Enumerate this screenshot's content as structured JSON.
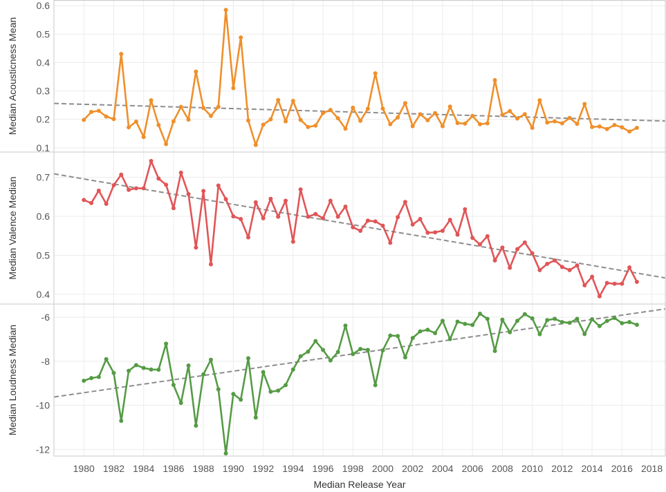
{
  "chart_data": {
    "type": "line",
    "xlabel": "Median Release Year",
    "x_ticks": [
      1980,
      1982,
      1984,
      1986,
      1988,
      1990,
      1992,
      1994,
      1996,
      1998,
      2000,
      2002,
      2004,
      2006,
      2008,
      2010,
      2012,
      2014,
      2016,
      2018
    ],
    "xlim": [
      1978,
      2018.9
    ],
    "panels": [
      {
        "ylabel": "Median Acousticness Mean",
        "color": "#ef8f2b",
        "ylim": [
          0.085,
          0.62
        ],
        "y_ticks": [
          0.1,
          0.2,
          0.3,
          0.4,
          0.5,
          0.6
        ],
        "y_tick_labels": [
          "0.1",
          "0.2",
          "0.3",
          "0.4",
          "0.5",
          "0.6"
        ],
        "trend": [
          [
            1978,
            0.256
          ],
          [
            2018.9,
            0.194
          ]
        ],
        "points": [
          [
            1980.0,
            0.198
          ],
          [
            1980.5,
            0.226
          ],
          [
            1981.0,
            0.23
          ],
          [
            1981.5,
            0.21
          ],
          [
            1982.0,
            0.201
          ],
          [
            1982.5,
            0.43
          ],
          [
            1983.0,
            0.172
          ],
          [
            1983.5,
            0.192
          ],
          [
            1984.0,
            0.138
          ],
          [
            1984.5,
            0.267
          ],
          [
            1985.0,
            0.18
          ],
          [
            1985.5,
            0.113
          ],
          [
            1986.0,
            0.193
          ],
          [
            1986.5,
            0.244
          ],
          [
            1987.0,
            0.199
          ],
          [
            1987.5,
            0.368
          ],
          [
            1988.0,
            0.24
          ],
          [
            1988.5,
            0.212
          ],
          [
            1989.0,
            0.244
          ],
          [
            1989.5,
            0.585
          ],
          [
            1990.0,
            0.31
          ],
          [
            1990.5,
            0.488
          ],
          [
            1991.0,
            0.196
          ],
          [
            1991.5,
            0.11
          ],
          [
            1992.0,
            0.181
          ],
          [
            1992.5,
            0.2
          ],
          [
            1993.0,
            0.268
          ],
          [
            1993.5,
            0.193
          ],
          [
            1994.0,
            0.265
          ],
          [
            1994.5,
            0.198
          ],
          [
            1995.0,
            0.173
          ],
          [
            1995.5,
            0.178
          ],
          [
            1996.0,
            0.222
          ],
          [
            1996.5,
            0.233
          ],
          [
            1997.0,
            0.204
          ],
          [
            1997.5,
            0.167
          ],
          [
            1998.0,
            0.241
          ],
          [
            1998.5,
            0.195
          ],
          [
            1999.0,
            0.237
          ],
          [
            1999.5,
            0.362
          ],
          [
            2000.0,
            0.238
          ],
          [
            2000.5,
            0.183
          ],
          [
            2001.0,
            0.207
          ],
          [
            2001.5,
            0.257
          ],
          [
            2002.0,
            0.176
          ],
          [
            2002.5,
            0.218
          ],
          [
            2003.0,
            0.197
          ],
          [
            2003.5,
            0.222
          ],
          [
            2004.0,
            0.176
          ],
          [
            2004.5,
            0.245
          ],
          [
            2005.0,
            0.187
          ],
          [
            2005.5,
            0.185
          ],
          [
            2006.0,
            0.212
          ],
          [
            2006.5,
            0.183
          ],
          [
            2007.0,
            0.186
          ],
          [
            2007.5,
            0.338
          ],
          [
            2008.0,
            0.216
          ],
          [
            2008.5,
            0.229
          ],
          [
            2009.0,
            0.203
          ],
          [
            2009.5,
            0.218
          ],
          [
            2010.0,
            0.17
          ],
          [
            2010.5,
            0.267
          ],
          [
            2011.0,
            0.189
          ],
          [
            2011.5,
            0.193
          ],
          [
            2012.0,
            0.186
          ],
          [
            2012.5,
            0.205
          ],
          [
            2013.0,
            0.184
          ],
          [
            2013.5,
            0.254
          ],
          [
            2014.0,
            0.173
          ],
          [
            2014.5,
            0.175
          ],
          [
            2015.0,
            0.166
          ],
          [
            2015.5,
            0.18
          ],
          [
            2016.0,
            0.172
          ],
          [
            2016.5,
            0.157
          ],
          [
            2017.0,
            0.17
          ]
        ]
      },
      {
        "ylabel": "Median Valence Median",
        "color": "#e05557",
        "ylim": [
          0.375,
          0.765
        ],
        "y_ticks": [
          0.4,
          0.5,
          0.6,
          0.7
        ],
        "y_tick_labels": [
          "0.4",
          "0.5",
          "0.6",
          "0.7"
        ],
        "trend": [
          [
            1978,
            0.709
          ],
          [
            2018.9,
            0.442
          ]
        ],
        "points": [
          [
            1980.0,
            0.642
          ],
          [
            1980.5,
            0.634
          ],
          [
            1981.0,
            0.666
          ],
          [
            1981.5,
            0.632
          ],
          [
            1982.0,
            0.68
          ],
          [
            1982.5,
            0.707
          ],
          [
            1983.0,
            0.668
          ],
          [
            1983.5,
            0.672
          ],
          [
            1984.0,
            0.672
          ],
          [
            1984.5,
            0.742
          ],
          [
            1985.0,
            0.697
          ],
          [
            1985.5,
            0.681
          ],
          [
            1986.0,
            0.621
          ],
          [
            1986.5,
            0.712
          ],
          [
            1987.0,
            0.657
          ],
          [
            1987.5,
            0.52
          ],
          [
            1988.0,
            0.665
          ],
          [
            1988.5,
            0.477
          ],
          [
            1989.0,
            0.679
          ],
          [
            1989.5,
            0.644
          ],
          [
            1990.0,
            0.6
          ],
          [
            1990.5,
            0.593
          ],
          [
            1991.0,
            0.546
          ],
          [
            1991.5,
            0.636
          ],
          [
            1992.0,
            0.595
          ],
          [
            1992.5,
            0.645
          ],
          [
            1993.0,
            0.599
          ],
          [
            1993.5,
            0.64
          ],
          [
            1994.0,
            0.535
          ],
          [
            1994.5,
            0.669
          ],
          [
            1995.0,
            0.599
          ],
          [
            1995.5,
            0.606
          ],
          [
            1996.0,
            0.595
          ],
          [
            1996.5,
            0.64
          ],
          [
            1997.0,
            0.599
          ],
          [
            1997.5,
            0.625
          ],
          [
            1998.0,
            0.572
          ],
          [
            1998.5,
            0.563
          ],
          [
            1999.0,
            0.589
          ],
          [
            1999.5,
            0.587
          ],
          [
            2000.0,
            0.576
          ],
          [
            2000.5,
            0.532
          ],
          [
            2001.0,
            0.598
          ],
          [
            2001.5,
            0.637
          ],
          [
            2002.0,
            0.579
          ],
          [
            2002.5,
            0.593
          ],
          [
            2003.0,
            0.558
          ],
          [
            2003.5,
            0.559
          ],
          [
            2004.0,
            0.563
          ],
          [
            2004.5,
            0.591
          ],
          [
            2005.0,
            0.553
          ],
          [
            2005.5,
            0.618
          ],
          [
            2006.0,
            0.545
          ],
          [
            2006.5,
            0.528
          ],
          [
            2007.0,
            0.549
          ],
          [
            2007.5,
            0.487
          ],
          [
            2008.0,
            0.52
          ],
          [
            2008.5,
            0.468
          ],
          [
            2009.0,
            0.516
          ],
          [
            2009.5,
            0.533
          ],
          [
            2010.0,
            0.505
          ],
          [
            2010.5,
            0.462
          ],
          [
            2011.0,
            0.478
          ],
          [
            2011.5,
            0.487
          ],
          [
            2012.0,
            0.47
          ],
          [
            2012.5,
            0.462
          ],
          [
            2013.0,
            0.474
          ],
          [
            2013.5,
            0.423
          ],
          [
            2014.0,
            0.445
          ],
          [
            2014.5,
            0.395
          ],
          [
            2015.0,
            0.429
          ],
          [
            2015.5,
            0.427
          ],
          [
            2016.0,
            0.427
          ],
          [
            2016.5,
            0.469
          ],
          [
            2017.0,
            0.432
          ]
        ]
      },
      {
        "ylabel": "Median Loudness Median",
        "color": "#559b45",
        "ylim": [
          -12.3,
          -5.4
        ],
        "y_ticks": [
          -12,
          -10,
          -8,
          -6
        ],
        "y_tick_labels": [
          "-12",
          "-10",
          "-8",
          "-6"
        ],
        "trend": [
          [
            1978,
            -9.62
          ],
          [
            2018.9,
            -5.62
          ]
        ],
        "points": [
          [
            1980.0,
            -8.88
          ],
          [
            1980.5,
            -8.76
          ],
          [
            1981.0,
            -8.71
          ],
          [
            1981.5,
            -7.9
          ],
          [
            1982.0,
            -8.53
          ],
          [
            1982.5,
            -10.7
          ],
          [
            1983.0,
            -8.43
          ],
          [
            1983.5,
            -8.17
          ],
          [
            1984.0,
            -8.3
          ],
          [
            1984.5,
            -8.37
          ],
          [
            1985.0,
            -8.38
          ],
          [
            1985.5,
            -7.2
          ],
          [
            1986.0,
            -9.07
          ],
          [
            1986.5,
            -9.89
          ],
          [
            1987.0,
            -8.19
          ],
          [
            1987.5,
            -10.92
          ],
          [
            1988.0,
            -8.59
          ],
          [
            1988.5,
            -7.93
          ],
          [
            1989.0,
            -9.27
          ],
          [
            1989.5,
            -12.18
          ],
          [
            1990.0,
            -9.48
          ],
          [
            1990.5,
            -9.74
          ],
          [
            1991.0,
            -7.86
          ],
          [
            1991.5,
            -10.55
          ],
          [
            1992.0,
            -8.49
          ],
          [
            1992.5,
            -9.38
          ],
          [
            1993.0,
            -9.33
          ],
          [
            1993.5,
            -9.08
          ],
          [
            1994.0,
            -8.37
          ],
          [
            1994.5,
            -7.77
          ],
          [
            1995.0,
            -7.56
          ],
          [
            1995.5,
            -7.08
          ],
          [
            1996.0,
            -7.48
          ],
          [
            1996.5,
            -7.96
          ],
          [
            1997.0,
            -7.58
          ],
          [
            1997.5,
            -6.38
          ],
          [
            1998.0,
            -7.67
          ],
          [
            1998.5,
            -7.44
          ],
          [
            1999.0,
            -7.48
          ],
          [
            1999.5,
            -9.08
          ],
          [
            2000.0,
            -7.5
          ],
          [
            2000.5,
            -6.83
          ],
          [
            2001.0,
            -6.85
          ],
          [
            2001.5,
            -7.82
          ],
          [
            2002.0,
            -6.94
          ],
          [
            2002.5,
            -6.64
          ],
          [
            2003.0,
            -6.57
          ],
          [
            2003.5,
            -6.72
          ],
          [
            2004.0,
            -6.16
          ],
          [
            2004.5,
            -6.99
          ],
          [
            2005.0,
            -6.2
          ],
          [
            2005.5,
            -6.3
          ],
          [
            2006.0,
            -6.35
          ],
          [
            2006.5,
            -5.84
          ],
          [
            2007.0,
            -6.07
          ],
          [
            2007.5,
            -7.53
          ],
          [
            2008.0,
            -6.11
          ],
          [
            2008.5,
            -6.68
          ],
          [
            2009.0,
            -6.16
          ],
          [
            2009.5,
            -5.86
          ],
          [
            2010.0,
            -6.05
          ],
          [
            2010.5,
            -6.77
          ],
          [
            2011.0,
            -6.13
          ],
          [
            2011.5,
            -6.07
          ],
          [
            2012.0,
            -6.22
          ],
          [
            2012.5,
            -6.25
          ],
          [
            2013.0,
            -6.07
          ],
          [
            2013.5,
            -6.76
          ],
          [
            2014.0,
            -6.09
          ],
          [
            2014.5,
            -6.4
          ],
          [
            2015.0,
            -6.17
          ],
          [
            2015.5,
            -6.03
          ],
          [
            2016.0,
            -6.27
          ],
          [
            2016.5,
            -6.22
          ],
          [
            2017.0,
            -6.34
          ]
        ]
      }
    ]
  }
}
